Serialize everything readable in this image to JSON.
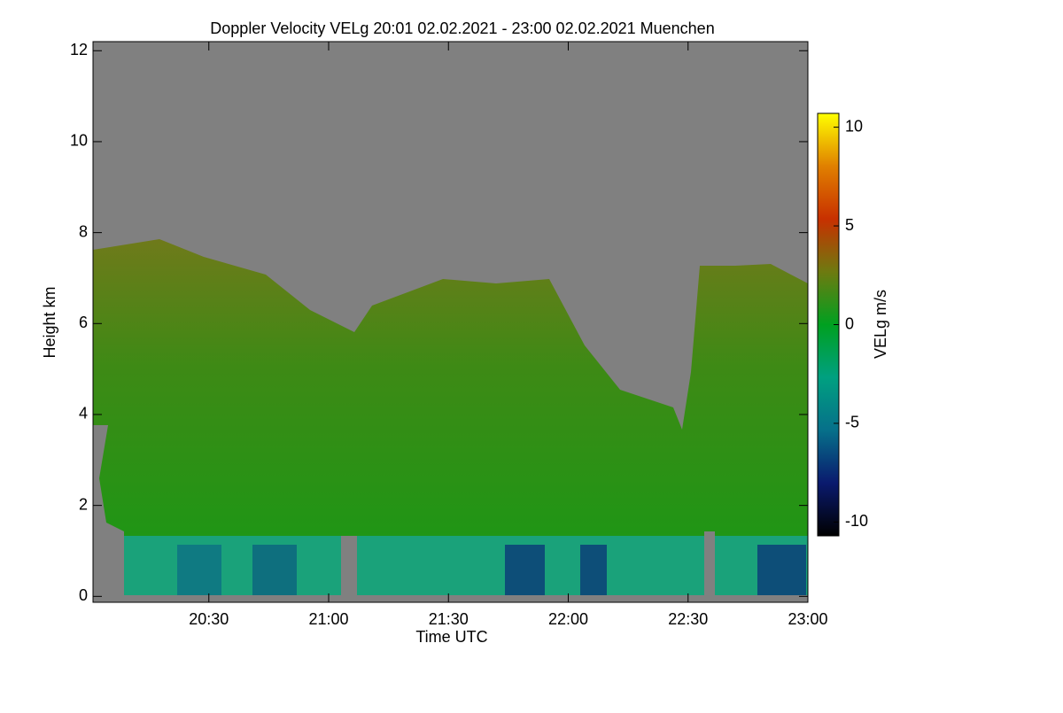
{
  "chart_data": {
    "type": "heatmap",
    "title": "Doppler Velocity VELg   20:01 02.02.2021 - 23:00 02.02.2021 Muenchen",
    "x_label": "Time UTC",
    "y_label": "Height km",
    "xlim": [
      "20:01",
      "23:00"
    ],
    "xticks": [
      "20:30",
      "21:00",
      "21:30",
      "22:00",
      "22:30",
      "23:00"
    ],
    "ylim": [
      -0.13,
      12.2
    ],
    "yticks": [
      0,
      2,
      4,
      6,
      8,
      10,
      12
    ],
    "colorbar": {
      "label": "VELg m/s",
      "lim": [
        -10.7,
        10.7
      ],
      "ticks": [
        -10,
        -5,
        0,
        5,
        10
      ],
      "colormap": [
        "#000000",
        "#0a1a6e",
        "#06708a",
        "#00a080",
        "#00a020",
        "#6e7a10",
        "#c83000",
        "#e08000",
        "#ffff00"
      ]
    }
  }
}
